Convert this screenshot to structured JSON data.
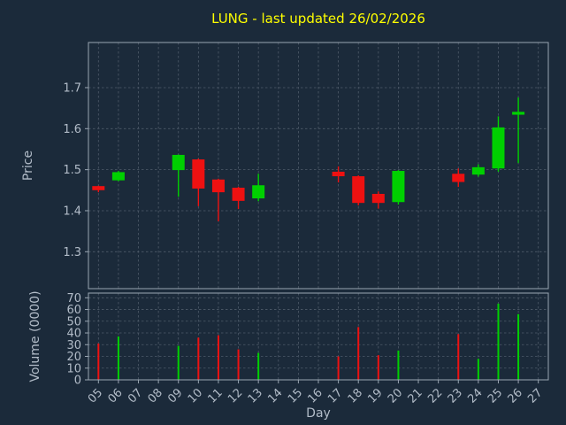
{
  "chart_data": {
    "type": "candlestick",
    "title": "LUNG - last updated 26/02/2026",
    "xlabel": "Day",
    "legend": "none",
    "grid": "on-dashed",
    "x_ticks": [
      "05",
      "06",
      "07",
      "08",
      "09",
      "10",
      "11",
      "12",
      "13",
      "14",
      "15",
      "16",
      "17",
      "18",
      "19",
      "20",
      "21",
      "22",
      "23",
      "24",
      "25",
      "26",
      "27"
    ],
    "price_axis": {
      "label": "Price",
      "ticks": [
        1.3,
        1.4,
        1.5,
        1.6,
        1.7
      ],
      "ylim": [
        1.21,
        1.81
      ]
    },
    "volume_axis": {
      "label": "Volume (0000)",
      "ticks": [
        0,
        10,
        20,
        30,
        40,
        50,
        60,
        70
      ],
      "ylim": [
        0,
        74
      ]
    },
    "colors": {
      "background": "#1b2a3a",
      "title": "#ffff00",
      "text": "#b2bcc8",
      "grid": "#4e5a69",
      "spine": "#9aa6b2",
      "up": "#00d000",
      "down": "#ee1111"
    },
    "candles": [
      {
        "day": "05",
        "open": 1.46,
        "high": 1.461,
        "low": 1.445,
        "close": 1.45,
        "volume": 31
      },
      {
        "day": "06",
        "open": 1.474,
        "high": 1.497,
        "low": 1.472,
        "close": 1.494,
        "volume": 37
      },
      {
        "day": "09",
        "open": 1.499,
        "high": 1.537,
        "low": 1.434,
        "close": 1.536,
        "volume": 29
      },
      {
        "day": "10",
        "open": 1.525,
        "high": 1.527,
        "low": 1.411,
        "close": 1.454,
        "volume": 36
      },
      {
        "day": "11",
        "open": 1.476,
        "high": 1.478,
        "low": 1.374,
        "close": 1.445,
        "volume": 38
      },
      {
        "day": "12",
        "open": 1.456,
        "high": 1.458,
        "low": 1.404,
        "close": 1.424,
        "volume": 26
      },
      {
        "day": "13",
        "open": 1.43,
        "high": 1.49,
        "low": 1.423,
        "close": 1.462,
        "volume": 23
      },
      {
        "day": "17",
        "open": 1.495,
        "high": 1.508,
        "low": 1.469,
        "close": 1.484,
        "volume": 20
      },
      {
        "day": "18",
        "open": 1.484,
        "high": 1.486,
        "low": 1.413,
        "close": 1.419,
        "volume": 45
      },
      {
        "day": "19",
        "open": 1.441,
        "high": 1.447,
        "low": 1.405,
        "close": 1.419,
        "volume": 21
      },
      {
        "day": "20",
        "open": 1.421,
        "high": 1.499,
        "low": 1.415,
        "close": 1.497,
        "volume": 25
      },
      {
        "day": "23",
        "open": 1.49,
        "high": 1.503,
        "low": 1.458,
        "close": 1.47,
        "volume": 39
      },
      {
        "day": "24",
        "open": 1.488,
        "high": 1.513,
        "low": 1.483,
        "close": 1.506,
        "volume": 18
      },
      {
        "day": "25",
        "open": 1.503,
        "high": 1.63,
        "low": 1.495,
        "close": 1.603,
        "volume": 65
      },
      {
        "day": "26",
        "open": 1.634,
        "high": 1.676,
        "low": 1.516,
        "close": 1.641,
        "volume": 56
      }
    ]
  }
}
